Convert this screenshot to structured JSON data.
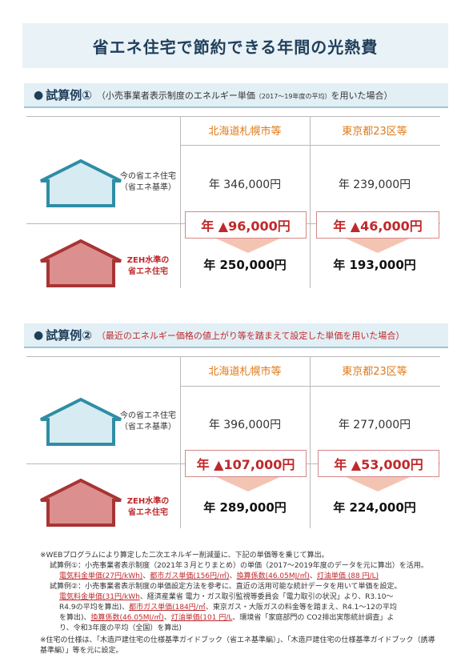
{
  "header": {
    "title": "省エネ住宅で節約できる年間の光熱費"
  },
  "house_labels": {
    "standard": [
      "今の省エネ住宅",
      "（省エネ基準）"
    ],
    "zeh": [
      "ZEH水準の",
      "省エネ住宅"
    ]
  },
  "colors": {
    "standard_house": "#2f8da5",
    "zeh_house": "#a83434",
    "accent_red": "#c0282b",
    "column_orange": "#e07b1a"
  },
  "sections": [
    {
      "bullet": "●",
      "title": "試算例①",
      "desc_prefix": "（小売事業者表示制度のエネルギー単価",
      "desc_small": "（2017〜19年度の平均）",
      "desc_suffix": "を用いた場合）",
      "col1": "北海道札幌市等",
      "col2": "東京都23区等",
      "std1": "年 346,000円",
      "std2": "年 239,000円",
      "save1": "年 ▲96,000円",
      "save2": "年 ▲46,000円",
      "zeh1": "年 250,000円",
      "zeh2": "年 193,000円"
    },
    {
      "bullet": "●",
      "title": "試算例②",
      "desc": "（最近のエネルギー価格の値上がり等を踏まえて設定した単価を用いた場合）",
      "col1": "北海道札幌市等",
      "col2": "東京都23区等",
      "std1": "年 396,000円",
      "std2": "年 277,000円",
      "save1": "年 ▲107,000円",
      "save2": "年 ▲53,000円",
      "zeh1": "年 289,000円",
      "zeh2": "年 224,000円"
    }
  ],
  "notes": {
    "n1": "※WEBプログラムにより算定した二次エネルギー削減量に、下記の単価等を乗じて算出。",
    "n2a": "試算例①：小売事業者表示制度（2021年３月とりまとめ）の単価（2017〜2019年度のデータを元に算出）を活用。",
    "n2b_1": "電気料金単価(27円/kWh)",
    "n2b_2": "都市ガス単価(156円/㎥)",
    "n2b_3": "換算係数(46.05MJ/㎥)",
    "n2b_4": "灯油単価 (88 円/L)",
    "n3a": "試算例②：小売事業者表示制度の単価設定方法を参考に、直近の活用可能な統計データを用いて単価を設定。",
    "n3b_1": "電気料金単価(31円/kWh",
    "n3b_2": "、経済産業省 電力・ガス取引監視等委員会「電力取引の状況」より、R3.10〜",
    "n3c": "R4.9の平均を算出)、",
    "n3c_2": "都市ガス単価(184円/㎥",
    "n3c_3": "、東京ガス・大阪ガスの料金等を踏まえ、R4.1〜12の平均",
    "n3d": "を算出)、",
    "n3d_2": "換算係数(46.05MJ/㎥)",
    "n3d_3": "灯油単価(101 円/L",
    "n3d_4": "、環境省「家庭部門の CO2排出実態統計調査」よ",
    "n3e": "り、令和3年度の平均（全国）を算出)",
    "n4": "※住宅の仕様は、「木造戸建住宅の仕様基準ガイドブック（省エネ基準編）」、「木造戸建住宅の仕様基準ガイドブック（誘導基準編）」等を元に設定。"
  }
}
